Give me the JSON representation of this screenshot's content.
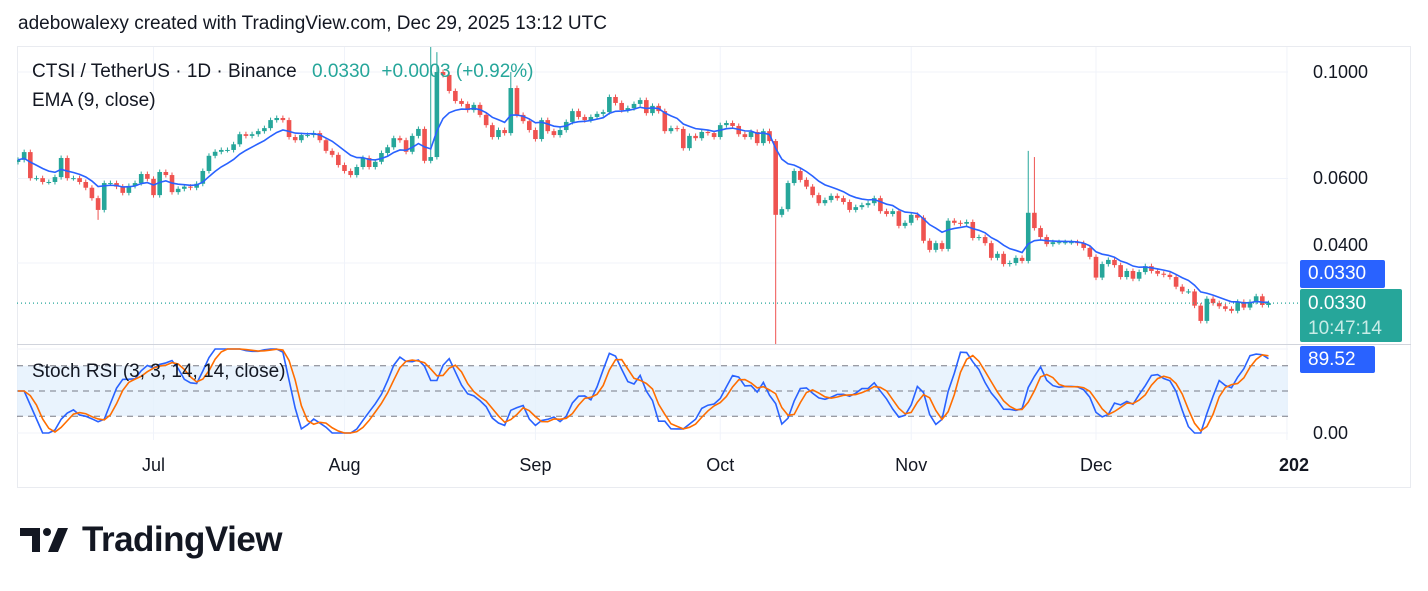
{
  "attribution": "adebowalexy created with TradingView.com, Dec 29, 2025 13:12 UTC",
  "legend": {
    "symbol": "CTSI / TetherUS · 1D · Binance",
    "price": "0.0330",
    "change": "+0.0003 (+0.92%)",
    "ema": "EMA (9, close)",
    "stoch": "Stoch RSI (3, 3, 14, 14, close)"
  },
  "price_scale": {
    "ticks": [
      "0.1000",
      "0.0600",
      "0.0400"
    ],
    "ema_tag": "0.0330",
    "last_tag": "0.0330",
    "countdown": "10:47:14"
  },
  "stoch_scale": {
    "tag": "89.52",
    "tick": "0.00"
  },
  "x_axis": {
    "ticks": [
      {
        "label": "Jul",
        "date": "2025-07-01"
      },
      {
        "label": "Aug",
        "date": "2025-08-01"
      },
      {
        "label": "Sep",
        "date": "2025-09-01"
      },
      {
        "label": "Oct",
        "date": "2025-10-01"
      },
      {
        "label": "Nov",
        "date": "2025-11-01"
      },
      {
        "label": "Dec",
        "date": "2025-12-01"
      },
      {
        "label": "202",
        "date": "2026-01-01"
      }
    ]
  },
  "colors": {
    "up": "#26a69a",
    "down": "#ef5350",
    "ema": "#2962ff",
    "stoch_k": "#2962ff",
    "stoch_d": "#ff6d00",
    "band": "#e3f0fd"
  },
  "brand": "TradingView",
  "chart_data": [
    {
      "type": "candlestick",
      "interval": "1D",
      "scale": "log",
      "ylim": [
        0.027,
        0.113
      ],
      "y_ticks": [
        0.1,
        0.06,
        0.04
      ],
      "grid": true,
      "last_date": "2025-12-29",
      "close": [
        0.0656,
        0.0681,
        0.0601,
        0.0601,
        0.059,
        0.059,
        0.0604,
        0.0662,
        0.0601,
        0.0601,
        0.059,
        0.0574,
        0.0546,
        0.0516,
        0.0587,
        0.0587,
        0.0577,
        0.056,
        0.0579,
        0.0587,
        0.0613,
        0.0599,
        0.0554,
        0.0619,
        0.061,
        0.0562,
        0.0571,
        0.0577,
        0.0574,
        0.0585,
        0.0622,
        0.0669,
        0.0682,
        0.0688,
        0.0688,
        0.0707,
        0.0742,
        0.0736,
        0.0742,
        0.0753,
        0.0764,
        0.0794,
        0.0802,
        0.0794,
        0.0732,
        0.0721,
        0.0739,
        0.0739,
        0.0746,
        0.0721,
        0.0685,
        0.0672,
        0.064,
        0.0622,
        0.061,
        0.0634,
        0.0662,
        0.0634,
        0.065,
        0.0678,
        0.0697,
        0.0728,
        0.0721,
        0.0682,
        0.0736,
        0.0761,
        0.0653,
        0.0665,
        0.1,
        0.0986,
        0.0913,
        0.087,
        0.0858,
        0.0833,
        0.0854,
        0.0814,
        0.0775,
        0.0732,
        0.0757,
        0.0746,
        0.0926,
        0.0814,
        0.079,
        0.0757,
        0.0725,
        0.0794,
        0.0753,
        0.0739,
        0.0757,
        0.0787,
        0.0829,
        0.0806,
        0.0794,
        0.0806,
        0.0818,
        0.0825,
        0.0887,
        0.0862,
        0.0833,
        0.0841,
        0.0858,
        0.0874,
        0.0821,
        0.085,
        0.0829,
        0.0753,
        0.0764,
        0.0761,
        0.0694,
        0.0736,
        0.0728,
        0.075,
        0.0746,
        0.0732,
        0.0775,
        0.0783,
        0.0772,
        0.0742,
        0.0732,
        0.075,
        0.0711,
        0.0753,
        0.0718,
        0.0504,
        0.0518,
        0.0587,
        0.0622,
        0.0596,
        0.0577,
        0.0554,
        0.0533,
        0.0541,
        0.0552,
        0.0546,
        0.0536,
        0.0516,
        0.0523,
        0.0528,
        0.0533,
        0.0546,
        0.0513,
        0.0506,
        0.0513,
        0.0478,
        0.0485,
        0.0504,
        0.0497,
        0.0445,
        0.0426,
        0.044,
        0.0428,
        0.049,
        0.0485,
        0.0483,
        0.0487,
        0.0451,
        0.0453,
        0.044,
        0.041,
        0.0418,
        0.0398,
        0.04,
        0.041,
        0.0404,
        0.0509,
        0.0473,
        0.0453,
        0.0438,
        0.0442,
        0.0442,
        0.0442,
        0.0442,
        0.044,
        0.043,
        0.0412,
        0.0373,
        0.0398,
        0.0406,
        0.0396,
        0.0374,
        0.0385,
        0.0371,
        0.0383,
        0.0394,
        0.0385,
        0.038,
        0.0378,
        0.0374,
        0.0357,
        0.0349,
        0.0349,
        0.0326,
        0.0303,
        0.0337,
        0.033,
        0.0325,
        0.0321,
        0.0318,
        0.0332,
        0.0323,
        0.0332,
        0.0341,
        0.0327,
        0.033
      ],
      "extremes": [
        {
          "date": "2025-06-22",
          "low": 0.0492
        },
        {
          "date": "2025-08-15",
          "high": 0.1133
        },
        {
          "date": "2025-08-16",
          "high": 0.11
        },
        {
          "date": "2025-08-28",
          "high": 0.1
        },
        {
          "date": "2025-10-10",
          "high": 0.0725,
          "low": 0.027
        },
        {
          "date": "2025-11-20",
          "high": 0.0685
        },
        {
          "date": "2025-11-21",
          "high": 0.0665
        }
      ],
      "indicators": [
        {
          "name": "EMA (9, close)",
          "period": 9,
          "last": 0.033
        },
        {
          "name": "Stoch RSI (3, 3, 14, 14, close)",
          "k": 3,
          "d": 3,
          "rsi": 14,
          "stoch": 14,
          "bands": [
            20,
            50,
            80
          ],
          "last": 89.52
        }
      ]
    }
  ]
}
